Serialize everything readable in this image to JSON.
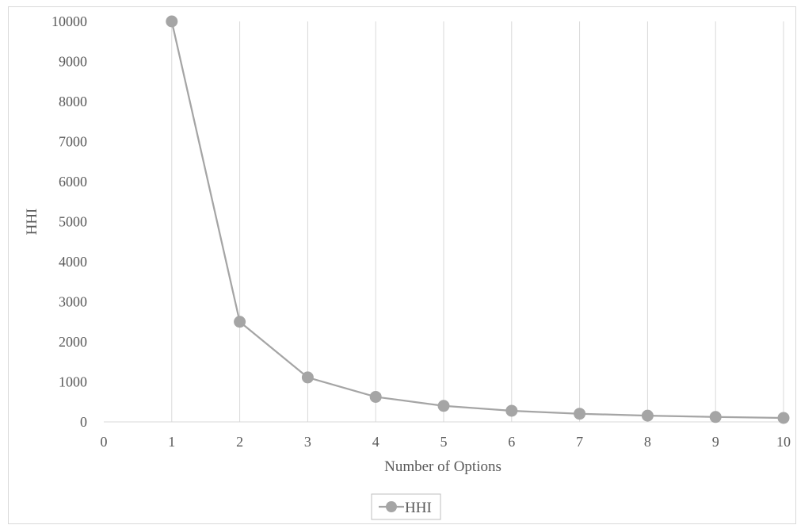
{
  "chart_data": {
    "type": "line",
    "title": "",
    "xlabel": "Number of Options",
    "ylabel": "HHI",
    "xlim": [
      0,
      10
    ],
    "ylim": [
      0,
      10000
    ],
    "x_ticks": [
      0,
      1,
      2,
      3,
      4,
      5,
      6,
      7,
      8,
      9,
      10
    ],
    "y_ticks": [
      0,
      1000,
      2000,
      3000,
      4000,
      5000,
      6000,
      7000,
      8000,
      9000,
      10000
    ],
    "grid": "vertical",
    "legend_position": "bottom",
    "series": [
      {
        "name": "HHI",
        "color": "#a5a5a5",
        "marker": "circle",
        "x": [
          1,
          2,
          3,
          4,
          5,
          6,
          7,
          8,
          9,
          10
        ],
        "y": [
          10000,
          2500,
          1111,
          625,
          400,
          278,
          204,
          156,
          123,
          100
        ]
      }
    ]
  },
  "colors": {
    "gridline": "#d9d9d9",
    "axis": "#d9d9d9",
    "text": "#595959"
  }
}
